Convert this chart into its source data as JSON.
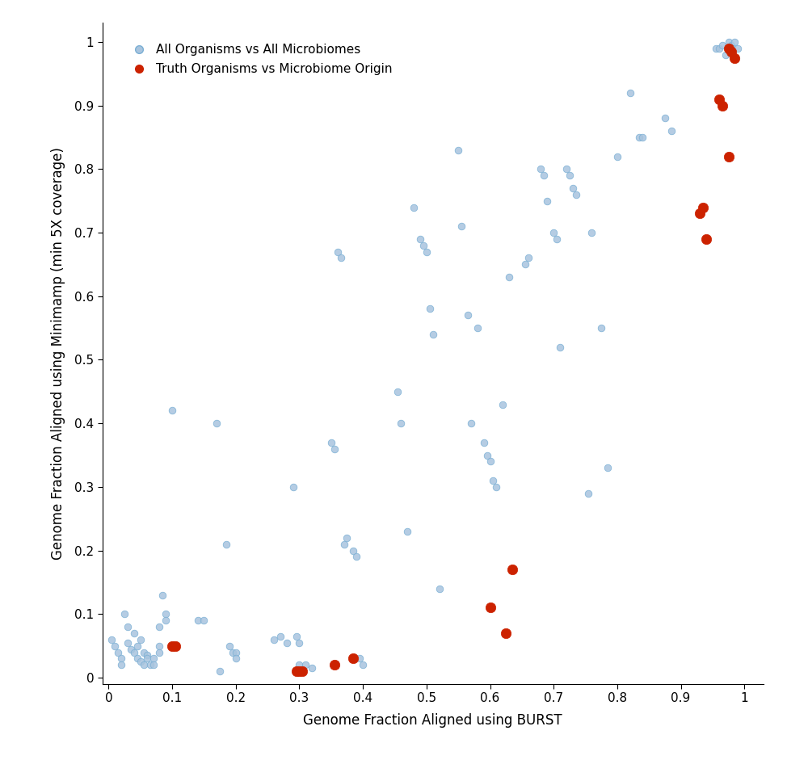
{
  "blue_points": [
    [
      0.005,
      0.06
    ],
    [
      0.01,
      0.05
    ],
    [
      0.015,
      0.04
    ],
    [
      0.02,
      0.03
    ],
    [
      0.02,
      0.02
    ],
    [
      0.025,
      0.1
    ],
    [
      0.03,
      0.08
    ],
    [
      0.03,
      0.055
    ],
    [
      0.035,
      0.045
    ],
    [
      0.04,
      0.04
    ],
    [
      0.04,
      0.07
    ],
    [
      0.045,
      0.05
    ],
    [
      0.045,
      0.03
    ],
    [
      0.05,
      0.025
    ],
    [
      0.05,
      0.06
    ],
    [
      0.055,
      0.04
    ],
    [
      0.055,
      0.02
    ],
    [
      0.06,
      0.035
    ],
    [
      0.06,
      0.03
    ],
    [
      0.065,
      0.02
    ],
    [
      0.07,
      0.03
    ],
    [
      0.07,
      0.02
    ],
    [
      0.08,
      0.08
    ],
    [
      0.08,
      0.05
    ],
    [
      0.08,
      0.04
    ],
    [
      0.085,
      0.13
    ],
    [
      0.09,
      0.1
    ],
    [
      0.09,
      0.09
    ],
    [
      0.1,
      0.42
    ],
    [
      0.14,
      0.09
    ],
    [
      0.15,
      0.09
    ],
    [
      0.17,
      0.4
    ],
    [
      0.175,
      0.01
    ],
    [
      0.185,
      0.21
    ],
    [
      0.19,
      0.05
    ],
    [
      0.195,
      0.04
    ],
    [
      0.2,
      0.04
    ],
    [
      0.2,
      0.03
    ],
    [
      0.26,
      0.06
    ],
    [
      0.27,
      0.065
    ],
    [
      0.28,
      0.055
    ],
    [
      0.29,
      0.3
    ],
    [
      0.295,
      0.065
    ],
    [
      0.3,
      0.055
    ],
    [
      0.3,
      0.02
    ],
    [
      0.305,
      0.01
    ],
    [
      0.31,
      0.02
    ],
    [
      0.32,
      0.015
    ],
    [
      0.35,
      0.37
    ],
    [
      0.355,
      0.36
    ],
    [
      0.36,
      0.67
    ],
    [
      0.365,
      0.66
    ],
    [
      0.37,
      0.21
    ],
    [
      0.375,
      0.22
    ],
    [
      0.385,
      0.2
    ],
    [
      0.39,
      0.19
    ],
    [
      0.395,
      0.03
    ],
    [
      0.4,
      0.02
    ],
    [
      0.455,
      0.45
    ],
    [
      0.46,
      0.4
    ],
    [
      0.47,
      0.23
    ],
    [
      0.48,
      0.74
    ],
    [
      0.49,
      0.69
    ],
    [
      0.495,
      0.68
    ],
    [
      0.5,
      0.67
    ],
    [
      0.505,
      0.58
    ],
    [
      0.51,
      0.54
    ],
    [
      0.52,
      0.14
    ],
    [
      0.55,
      0.83
    ],
    [
      0.555,
      0.71
    ],
    [
      0.565,
      0.57
    ],
    [
      0.57,
      0.4
    ],
    [
      0.58,
      0.55
    ],
    [
      0.59,
      0.37
    ],
    [
      0.595,
      0.35
    ],
    [
      0.6,
      0.34
    ],
    [
      0.605,
      0.31
    ],
    [
      0.61,
      0.3
    ],
    [
      0.62,
      0.43
    ],
    [
      0.63,
      0.63
    ],
    [
      0.655,
      0.65
    ],
    [
      0.66,
      0.66
    ],
    [
      0.68,
      0.8
    ],
    [
      0.685,
      0.79
    ],
    [
      0.69,
      0.75
    ],
    [
      0.7,
      0.7
    ],
    [
      0.705,
      0.69
    ],
    [
      0.71,
      0.52
    ],
    [
      0.72,
      0.8
    ],
    [
      0.725,
      0.79
    ],
    [
      0.73,
      0.77
    ],
    [
      0.735,
      0.76
    ],
    [
      0.755,
      0.29
    ],
    [
      0.76,
      0.7
    ],
    [
      0.775,
      0.55
    ],
    [
      0.785,
      0.33
    ],
    [
      0.8,
      0.82
    ],
    [
      0.82,
      0.92
    ],
    [
      0.835,
      0.85
    ],
    [
      0.84,
      0.85
    ],
    [
      0.875,
      0.88
    ],
    [
      0.885,
      0.86
    ],
    [
      0.955,
      0.99
    ],
    [
      0.96,
      0.99
    ],
    [
      0.965,
      0.995
    ],
    [
      0.97,
      0.98
    ],
    [
      0.975,
      1.0
    ],
    [
      0.98,
      0.995
    ],
    [
      0.985,
      1.0
    ],
    [
      0.99,
      0.99
    ]
  ],
  "red_points": [
    [
      0.1,
      0.05
    ],
    [
      0.105,
      0.05
    ],
    [
      0.295,
      0.01
    ],
    [
      0.3,
      0.01
    ],
    [
      0.305,
      0.01
    ],
    [
      0.355,
      0.02
    ],
    [
      0.385,
      0.03
    ],
    [
      0.6,
      0.11
    ],
    [
      0.625,
      0.07
    ],
    [
      0.635,
      0.17
    ],
    [
      0.93,
      0.73
    ],
    [
      0.935,
      0.74
    ],
    [
      0.94,
      0.69
    ],
    [
      0.96,
      0.91
    ],
    [
      0.965,
      0.9
    ],
    [
      0.975,
      0.82
    ],
    [
      0.975,
      0.99
    ],
    [
      0.98,
      0.985
    ],
    [
      0.985,
      0.975
    ]
  ],
  "blue_color": "#a8c4de",
  "red_color": "#cc2200",
  "xlabel": "Genome Fraction Aligned using BURST",
  "ylabel": "Genome Fraction Aligned using Minimamp (min 5X coverage)",
  "legend_blue": "All Organisms vs All Microbiomes",
  "legend_red": "Truth Organisms vs Microbiome Origin",
  "xlim": [
    -0.01,
    1.03
  ],
  "ylim": [
    -0.01,
    1.03
  ],
  "xticks": [
    0.0,
    0.1,
    0.2,
    0.3,
    0.4,
    0.5,
    0.6,
    0.7,
    0.8,
    0.9,
    1.0
  ],
  "yticks": [
    0.0,
    0.1,
    0.2,
    0.3,
    0.4,
    0.5,
    0.6,
    0.7,
    0.8,
    0.9,
    1.0
  ],
  "marker_size_blue": 38,
  "marker_size_red": 80,
  "blue_edge_color": "#7aafd4",
  "figsize": [
    9.74,
    9.41
  ],
  "dpi": 100
}
